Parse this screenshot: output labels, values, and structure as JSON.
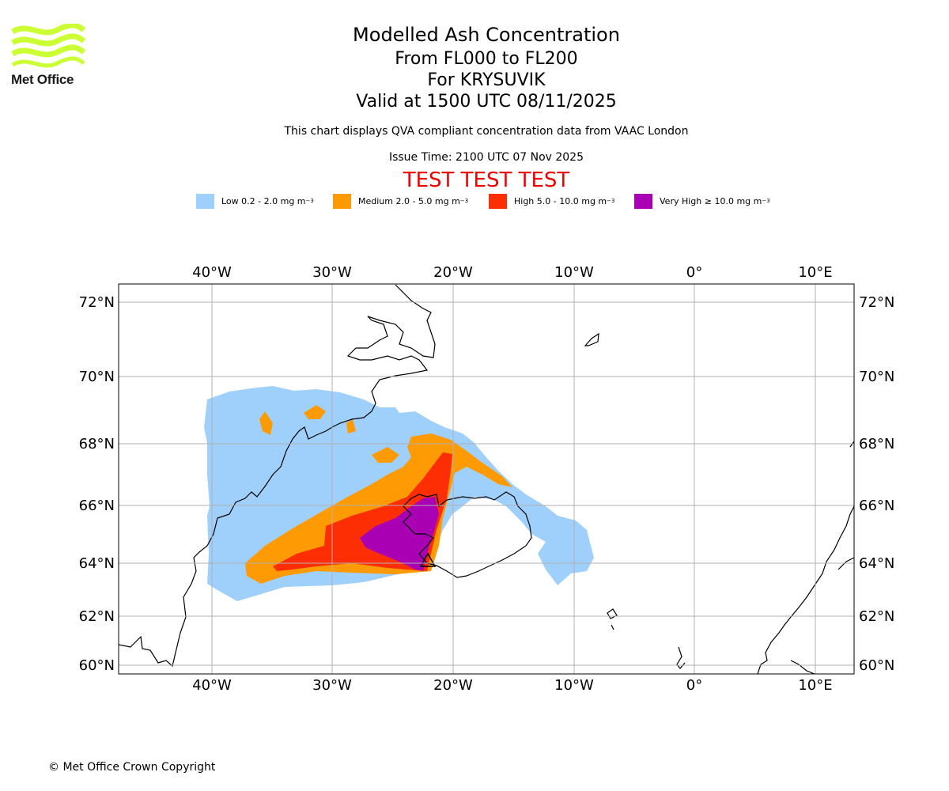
{
  "logo": {
    "text": "Met Office",
    "icon": "met-office-wave-logo"
  },
  "header": {
    "title": "Modelled Ash Concentration",
    "levels": "From FL000 to FL200",
    "volcano": "For KRYSUVIK",
    "valid": "Valid at 1500 UTC 08/11/2025",
    "description": "This chart displays QVA compliant concentration data from VAAC London",
    "issue": "Issue Time: 2100 UTC 07 Nov 2025",
    "test_banner": "TEST TEST TEST"
  },
  "legend": [
    {
      "label": "Low 0.2 - 2.0 mg m",
      "sup": "−3",
      "color": "#9fd0fc"
    },
    {
      "label": "Medium 2.0 - 5.0 mg m",
      "sup": "−3",
      "color": "#fe9a04"
    },
    {
      "label": "High 5.0 - 10.0 mg m",
      "sup": "−3",
      "color": "#fe2e04"
    },
    {
      "label": "Very High  ≥  10.0 mg m",
      "sup": "−3",
      "color": "#a900b4"
    }
  ],
  "map": {
    "lon_labels": [
      "40°W",
      "30°W",
      "20°W",
      "10°W",
      "0°",
      "10°E"
    ],
    "lat_labels": [
      "72°N",
      "70°N",
      "68°N",
      "66°N",
      "64°N",
      "62°N",
      "60°N"
    ],
    "volcano_marker": "triangle-volcano-icon"
  },
  "footer": {
    "copyright": "© Met Office Crown Copyright"
  }
}
